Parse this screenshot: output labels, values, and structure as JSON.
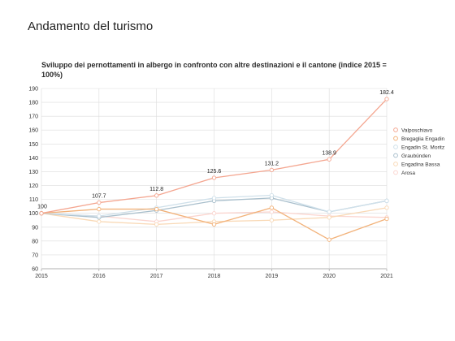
{
  "page": {
    "title": "Andamento del turismo"
  },
  "chart_data": {
    "type": "line",
    "title": "Sviluppo dei pernottamenti in albergo in confronto con altre destinazioni e il cantone (indice 2015 = 100%)",
    "xlabel": "",
    "ylabel": "",
    "x": [
      2015,
      2016,
      2017,
      2018,
      2019,
      2020,
      2021
    ],
    "ylim": [
      60,
      190
    ],
    "yticks": [
      60,
      70,
      80,
      90,
      100,
      110,
      120,
      130,
      140,
      150,
      160,
      170,
      180,
      190
    ],
    "grid": true,
    "legend_position": "right",
    "series": [
      {
        "name": "Valposchiavo",
        "color": "#f4a58f",
        "values": [
          100,
          107.7,
          112.8,
          125.6,
          131.2,
          138.9,
          182.4
        ],
        "labels": [
          "100",
          "107.7",
          "112.8",
          "125.6",
          "131.2",
          "138.9",
          "182.4"
        ]
      },
      {
        "name": "Bregaglia Engadin",
        "color": "#f2b27a",
        "values": [
          100,
          103,
          103,
          92,
          104,
          81,
          96
        ]
      },
      {
        "name": "Engadin St. Moritz",
        "color": "#cfe0ea",
        "values": [
          100,
          98,
          104,
          111,
          113,
          101,
          109
        ]
      },
      {
        "name": "Graubünden",
        "color": "#a9bfcc",
        "values": [
          100,
          97,
          102,
          109,
          111,
          101,
          109
        ]
      },
      {
        "name": "Engadina Bassa",
        "color": "#f9d9b6",
        "values": [
          100,
          94,
          92,
          94,
          95,
          97,
          104
        ]
      },
      {
        "name": "Arosa",
        "color": "#fbd5cf",
        "values": [
          100,
          98,
          94,
          100,
          101,
          98,
          97
        ]
      }
    ]
  }
}
